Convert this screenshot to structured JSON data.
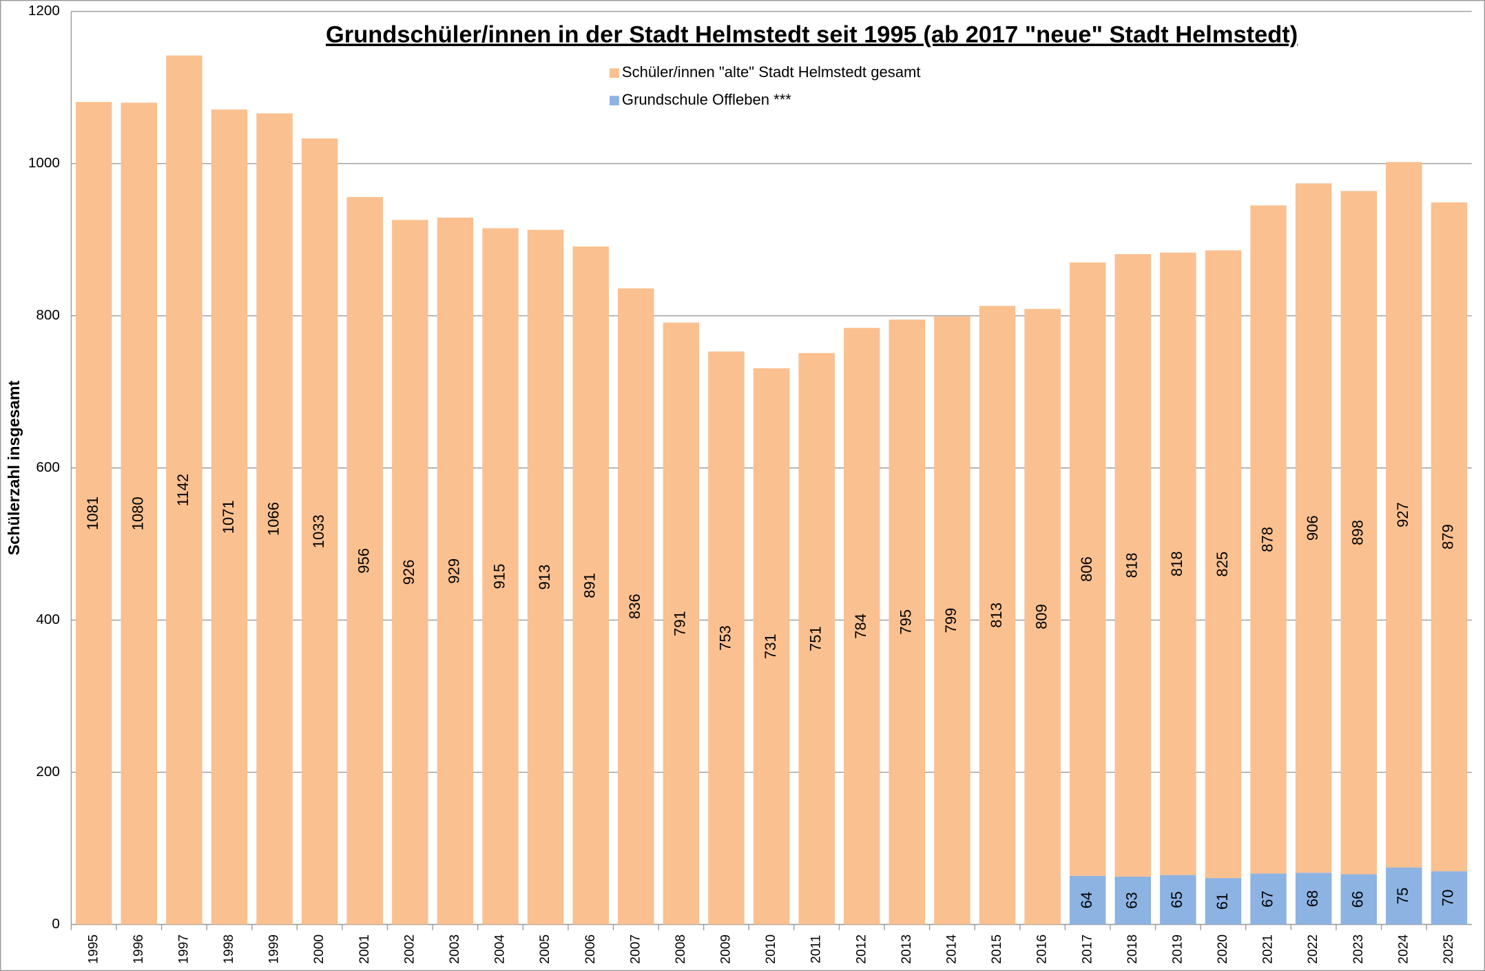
{
  "chart_data": {
    "type": "stacked_bar",
    "title": "Grundschüler/innen in der Stadt Helmstedt seit 1995 (ab 2017 \"neue\" Stadt Helmstedt)",
    "y_label": "Schülerzahl insgesamt",
    "categories": [
      "1995",
      "1996",
      "1997",
      "1998",
      "1999",
      "2000",
      "2001",
      "2002",
      "2003",
      "2004",
      "2005",
      "2006",
      "2007",
      "2008",
      "2009",
      "2010",
      "2011",
      "2012",
      "2013",
      "2014",
      "2015",
      "2016",
      "2017",
      "2018",
      "2019",
      "2020",
      "2021",
      "2022",
      "2023",
      "2024",
      "2025"
    ],
    "series": [
      {
        "name": "Grundschule Offleben ***",
        "color": "#8db3e2",
        "values": [
          null,
          null,
          null,
          null,
          null,
          null,
          null,
          null,
          null,
          null,
          null,
          null,
          null,
          null,
          null,
          null,
          null,
          null,
          null,
          null,
          null,
          null,
          64,
          63,
          65,
          61,
          67,
          68,
          66,
          75,
          70
        ]
      },
      {
        "name": "Schüler/innen \"alte\" Stadt Helmstedt gesamt",
        "color": "#fac090",
        "values": [
          1081,
          1080,
          1142,
          1071,
          1066,
          1033,
          956,
          926,
          929,
          915,
          913,
          891,
          836,
          791,
          753,
          731,
          751,
          784,
          795,
          799,
          813,
          809,
          806,
          818,
          818,
          825,
          878,
          906,
          898,
          927,
          879
        ]
      }
    ],
    "ylim": [
      0,
      1200
    ],
    "yticks": [
      0,
      200,
      400,
      600,
      800,
      1000,
      1200
    ],
    "grid": true
  }
}
